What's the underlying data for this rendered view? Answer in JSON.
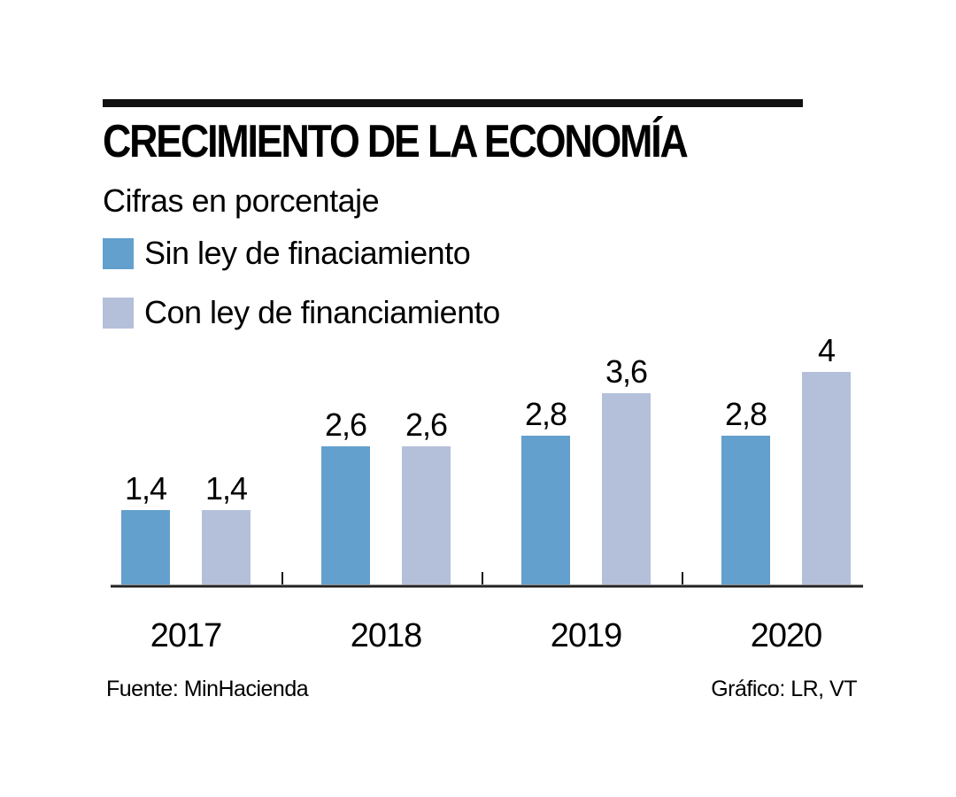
{
  "header": {
    "title": "CRECIMIENTO DE LA ECONOMÍA",
    "subtitle": "Cifras en porcentaje"
  },
  "legend": [
    {
      "label": "Sin ley de finaciamiento",
      "color": "#63a0cd"
    },
    {
      "label": "Con ley de financiamiento",
      "color": "#b4c0da"
    }
  ],
  "footer": {
    "source": "Fuente: MinHacienda",
    "credit": "Gráfico: LR, VT"
  },
  "chart_data": {
    "type": "bar",
    "title": "CRECIMIENTO DE LA ECONOMÍA",
    "subtitle": "Cifras en porcentaje",
    "categories": [
      "2017",
      "2018",
      "2019",
      "2020"
    ],
    "series": [
      {
        "name": "Sin ley de finaciamiento",
        "color": "#63a0cd",
        "values": [
          1.4,
          2.6,
          2.8,
          2.8
        ],
        "labels": [
          "1,4",
          "2,6",
          "2,8",
          "2,8"
        ]
      },
      {
        "name": "Con ley de financiamiento",
        "color": "#b4c0da",
        "values": [
          1.4,
          2.6,
          3.6,
          4
        ],
        "labels": [
          "1,4",
          "2,6",
          "3,6",
          "4"
        ]
      }
    ],
    "xlabel": "",
    "ylabel": "",
    "ylim": [
      0,
      4
    ],
    "grid": false,
    "legend_position": "top-left"
  }
}
